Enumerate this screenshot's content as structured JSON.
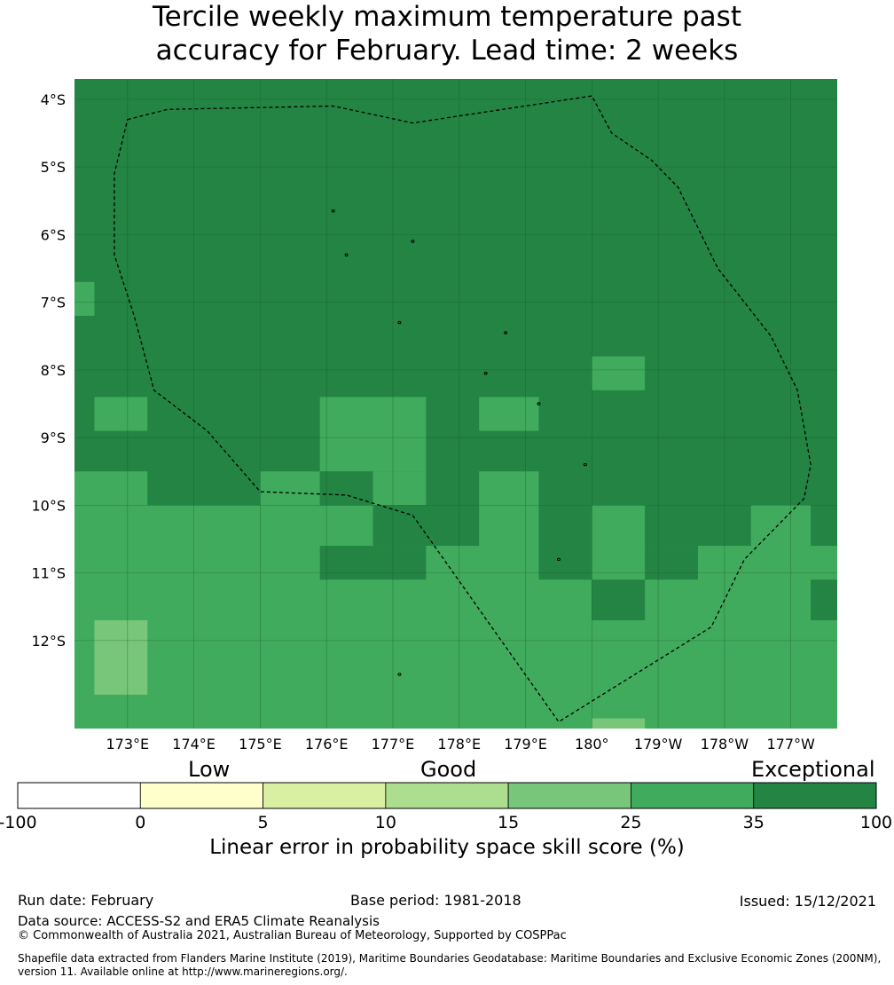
{
  "title": {
    "line1": "Tercile weekly maximum temperature past",
    "line2": "accuracy for February. Lead time: 2 weeks"
  },
  "chart_data": {
    "type": "heatmap",
    "title": "Tercile weekly maximum temperature past accuracy for February. Lead time: 2 weeks",
    "xlabel": "",
    "ylabel": "",
    "lon_range": [
      172.2,
      183.7
    ],
    "lat_range": [
      -13.3,
      -3.7
    ],
    "x_ticks": [
      {
        "lon": 173,
        "label": "173°E"
      },
      {
        "lon": 174,
        "label": "174°E"
      },
      {
        "lon": 175,
        "label": "175°E"
      },
      {
        "lon": 176,
        "label": "176°E"
      },
      {
        "lon": 177,
        "label": "177°E"
      },
      {
        "lon": 178,
        "label": "178°E"
      },
      {
        "lon": 179,
        "label": "179°E"
      },
      {
        "lon": 180,
        "label": "180°"
      },
      {
        "lon": 181,
        "label": "179°W"
      },
      {
        "lon": 182,
        "label": "178°W"
      },
      {
        "lon": 183,
        "label": "177°W"
      }
    ],
    "y_ticks": [
      {
        "lat": -4,
        "label": "4°S"
      },
      {
        "lat": -5,
        "label": "5°S"
      },
      {
        "lat": -6,
        "label": "6°S"
      },
      {
        "lat": -7,
        "label": "7°S"
      },
      {
        "lat": -8,
        "label": "8°S"
      },
      {
        "lat": -9,
        "label": "9°S"
      },
      {
        "lat": -10,
        "label": "10°S"
      },
      {
        "lat": -11,
        "label": "11°S"
      },
      {
        "lat": -12,
        "label": "12°S"
      }
    ],
    "grid": true,
    "background_value": 40,
    "cells": [
      {
        "lon": [
          172.2,
          172.5
        ],
        "lat": [
          -7.2,
          -6.7
        ],
        "value": 30
      },
      {
        "lon": [
          172.5,
          173.3
        ],
        "lat": [
          -8.9,
          -8.4
        ],
        "value": 30
      },
      {
        "lon": [
          175.9,
          177.5
        ],
        "lat": [
          -9.5,
          -8.4
        ],
        "value": 30
      },
      {
        "lon": [
          178.3,
          179.2
        ],
        "lat": [
          -8.9,
          -8.4
        ],
        "value": 30
      },
      {
        "lon": [
          180.0,
          180.8
        ],
        "lat": [
          -8.3,
          -7.8
        ],
        "value": 30
      },
      {
        "lon": [
          172.2,
          173.3
        ],
        "lat": [
          -10.0,
          -9.5
        ],
        "value": 30
      },
      {
        "lon": [
          172.2,
          183.7
        ],
        "lat": [
          -13.3,
          -10.0
        ],
        "value": 30
      },
      {
        "lon": [
          175.0,
          175.9
        ],
        "lat": [
          -10.0,
          -9.5
        ],
        "value": 30
      },
      {
        "lon": [
          176.7,
          177.5
        ],
        "lat": [
          -10.0,
          -9.5
        ],
        "value": 30
      },
      {
        "lon": [
          178.3,
          179.2
        ],
        "lat": [
          -10.0,
          -9.5
        ],
        "value": 30
      },
      {
        "lon": [
          182.4,
          183.3
        ],
        "lat": [
          -10.6,
          -10.0
        ],
        "value": 30
      },
      {
        "lon": [
          175.9,
          176.7
        ],
        "lat": [
          -10.0,
          -9.5
        ],
        "value": 40
      },
      {
        "lon": [
          176.7,
          178.3
        ],
        "lat": [
          -10.6,
          -10.0
        ],
        "value": 40
      },
      {
        "lon": [
          179.2,
          180.0
        ],
        "lat": [
          -11.1,
          -10.0
        ],
        "value": 40
      },
      {
        "lon": [
          180.8,
          182.4
        ],
        "lat": [
          -10.6,
          -10.0
        ],
        "value": 40
      },
      {
        "lon": [
          180.8,
          181.6
        ],
        "lat": [
          -11.1,
          -10.6
        ],
        "value": 40
      },
      {
        "lon": [
          183.3,
          183.7
        ],
        "lat": [
          -10.6,
          -10.0
        ],
        "value": 40
      },
      {
        "lon": [
          175.9,
          177.5
        ],
        "lat": [
          -11.1,
          -10.6
        ],
        "value": 40
      },
      {
        "lon": [
          180.0,
          180.8
        ],
        "lat": [
          -11.7,
          -11.1
        ],
        "value": 40
      },
      {
        "lon": [
          183.3,
          183.7
        ],
        "lat": [
          -11.7,
          -11.1
        ],
        "value": 40
      },
      {
        "lon": [
          172.5,
          173.3
        ],
        "lat": [
          -12.8,
          -11.7
        ],
        "value": 20
      },
      {
        "lon": [
          180.0,
          180.8
        ],
        "lat": [
          -13.3,
          -13.15
        ],
        "value": 20
      }
    ],
    "colorbar": {
      "bounds": [
        -100,
        0,
        5,
        10,
        15,
        25,
        35,
        100
      ],
      "colors": [
        "#ffffff",
        "#ffffcc",
        "#d9f0a3",
        "#addd8e",
        "#78c679",
        "#41ab5d",
        "#238443"
      ],
      "categories": [
        "Low",
        "Good",
        "Exceptional"
      ],
      "label": "Linear error in probability space skill score (%)"
    }
  },
  "colors": {
    "exceptional_high": "#238443",
    "exceptional": "#41ab5d",
    "good_high": "#78c679",
    "grid": "#1a5c2c",
    "boundary": "#000000"
  },
  "footer": {
    "run_date": "Run date: February",
    "base_period": "Base period: 1981-2018",
    "issued": "Issued: 15/12/2021",
    "data_source": "Data source: ACCESS-S2 and ERA5 Climate Reanalysis",
    "copyright": "© Commonwealth of Australia 2021, Australian Bureau of Meteorology, Supported by COSPPac",
    "shapefile_line1": "Shapefile data extracted from Flanders Marine Institute (2019), Maritime Boundaries Geodatabase: Maritime Boundaries and Exclusive Economic Zones (200NM),",
    "shapefile_line2": "version 11. Available online at http://www.marineregions.org/."
  }
}
